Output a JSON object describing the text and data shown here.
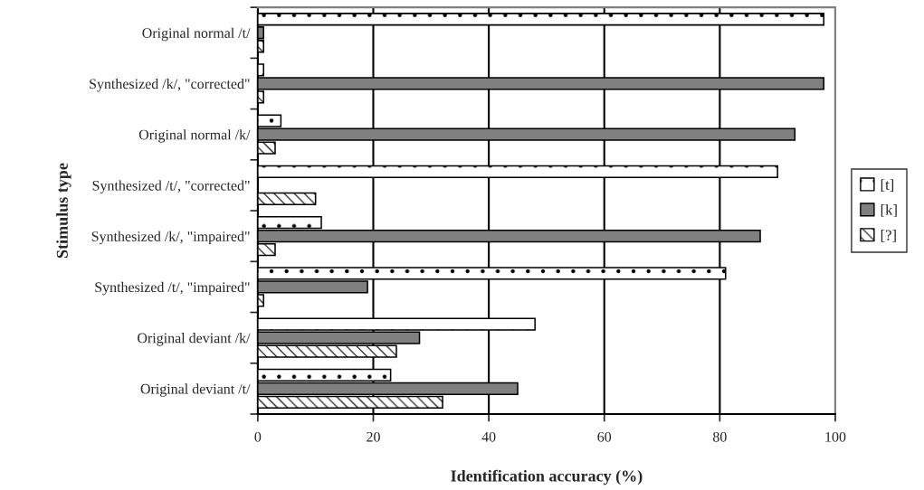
{
  "chart_data": {
    "type": "bar",
    "orientation": "horizontal",
    "categories": [
      "Original normal /t/",
      "Synthesized /k/, \"corrected\"",
      "Original normal /k/",
      "Synthesized /t/, \"corrected\"",
      "Synthesized /k/, \"impaired\"",
      "Synthesized /t/, \"impaired\"",
      "Original deviant /k/",
      "Original deviant /t/"
    ],
    "series": [
      {
        "name": "[t]",
        "color": "#ffffff",
        "values": [
          98,
          1,
          4,
          90,
          11,
          81,
          48,
          23
        ]
      },
      {
        "name": "[k]",
        "color": "#808080",
        "values": [
          1,
          98,
          93,
          null,
          87,
          19,
          28,
          45
        ]
      },
      {
        "name": "[?]",
        "color": "#ffffff",
        "values": [
          1,
          1,
          3,
          10,
          3,
          1,
          24,
          32
        ]
      }
    ],
    "xlabel": "Identification accuracy (%)",
    "ylabel": "Stimulus type",
    "xlim": [
      0,
      100
    ],
    "xticks": [
      0,
      20,
      40,
      60,
      80,
      100
    ],
    "grid": "x",
    "legend": "right"
  }
}
